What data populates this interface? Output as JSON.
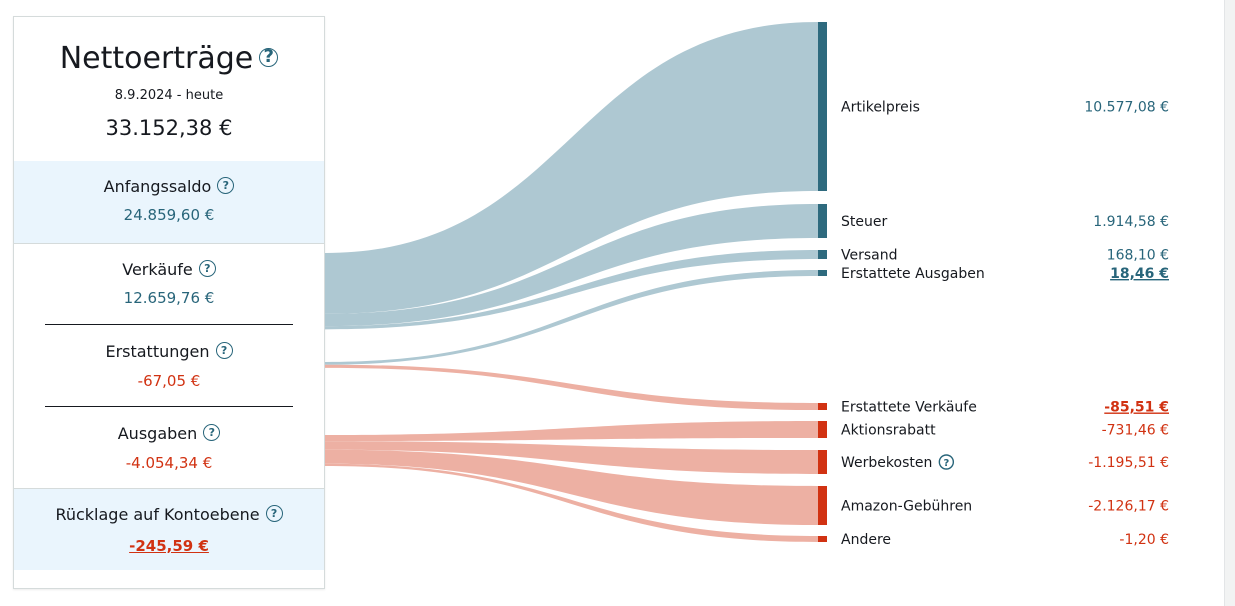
{
  "summary": {
    "title": "Nettoerträge",
    "date_range": "8.9.2024 - heute",
    "total": "33.152,38 €",
    "help_glyph": "?"
  },
  "sections": {
    "anfangssaldo": {
      "label": "Anfangssaldo",
      "value": "24.859,60 €"
    },
    "verkaeufe": {
      "label": "Verkäufe",
      "value": "12.659,76 €"
    },
    "erstattungen": {
      "label": "Erstattungen",
      "value": "-67,05 €"
    },
    "ausgaben": {
      "label": "Ausgaben",
      "value": "-4.054,34 €"
    },
    "ruecklage": {
      "label": "Rücklage auf Kontoebene",
      "value": "-245,59 €"
    }
  },
  "colors": {
    "positive_flow": "#aec8d2",
    "positive_node": "#2e6a7e",
    "negative_flow": "#edb0a3",
    "negative_node": "#d13212",
    "positive_text": "#28657a",
    "negative_text": "#d13212"
  },
  "chart_data": {
    "type": "sankey",
    "sources": [
      {
        "name": "Verkäufe",
        "value": 12659.76,
        "sign": "positive"
      },
      {
        "name": "Erstattungen",
        "value": -67.05,
        "sign": "mixed"
      },
      {
        "name": "Ausgaben",
        "value": -4054.34,
        "sign": "negative"
      }
    ],
    "targets": [
      {
        "label": "Artikelpreis",
        "display": "10.577,08 €",
        "value": 10577.08,
        "source": "Verkäufe",
        "sign": "positive",
        "link": false,
        "help": false
      },
      {
        "label": "Steuer",
        "display": "1.914,58 €",
        "value": 1914.58,
        "source": "Verkäufe",
        "sign": "positive",
        "link": false,
        "help": false
      },
      {
        "label": "Versand",
        "display": "168,10 €",
        "value": 168.1,
        "source": "Verkäufe",
        "sign": "positive",
        "link": false,
        "help": false
      },
      {
        "label": "Erstattete Ausgaben",
        "display": "18,46 €",
        "value": 18.46,
        "source": "Erstattungen",
        "sign": "positive",
        "link": true,
        "help": false
      },
      {
        "label": "Erstattete Verkäufe",
        "display": "-85,51 €",
        "value": -85.51,
        "source": "Erstattungen",
        "sign": "negative",
        "link": true,
        "help": false
      },
      {
        "label": "Aktionsrabatt",
        "display": "-731,46 €",
        "value": -731.46,
        "source": "Ausgaben",
        "sign": "negative",
        "link": false,
        "help": false
      },
      {
        "label": "Werbekosten",
        "display": "-1.195,51 €",
        "value": -1195.51,
        "source": "Ausgaben",
        "sign": "negative",
        "link": false,
        "help": true
      },
      {
        "label": "Amazon-Gebühren",
        "display": "-2.126,17 €",
        "value": -2126.17,
        "source": "Ausgaben",
        "sign": "negative",
        "link": false,
        "help": false
      },
      {
        "label": "Andere",
        "display": "-1,20 €",
        "value": -1.2,
        "source": "Ausgaben",
        "sign": "negative",
        "link": false,
        "help": false
      }
    ]
  }
}
